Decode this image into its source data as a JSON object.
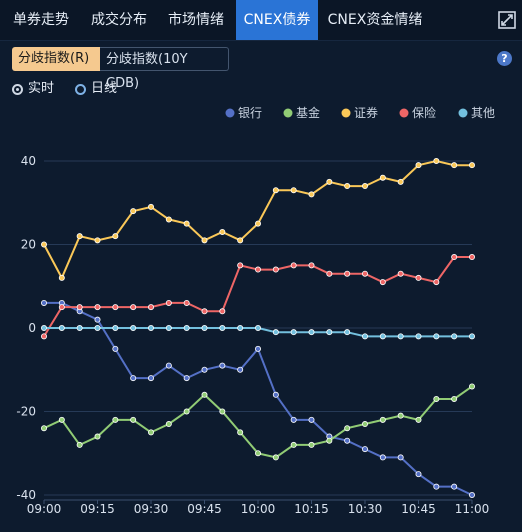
{
  "tabs": [
    {
      "label": "单券走势",
      "active": false
    },
    {
      "label": "成交分布",
      "active": false
    },
    {
      "label": "市场情绪",
      "active": false
    },
    {
      "label": "CNEX债券",
      "active": true
    },
    {
      "label": "CNEX资金情绪",
      "active": false
    }
  ],
  "subtabs": [
    {
      "label": "分歧指数(R)",
      "active": true
    },
    {
      "label": "分歧指数(10Y CDB)",
      "active": false
    }
  ],
  "modes": [
    {
      "label": "实时",
      "checked": true
    },
    {
      "label": "日线",
      "checked": false
    }
  ],
  "icons": {
    "expand": "expand-icon",
    "help": "help-icon"
  },
  "help_glyph": "?",
  "colors": {
    "active_tab": "#2a74d6",
    "active_subtab": "#f5c98f",
    "background": "#0d1b2e"
  },
  "chart_data": {
    "type": "line",
    "title": "",
    "xlabel": "",
    "ylabel": "",
    "ylim": [
      -40,
      45
    ],
    "yticks": [
      40,
      20,
      0,
      -20,
      -40
    ],
    "grid": true,
    "legend_position": "top-right",
    "x": [
      "09:00",
      "09:05",
      "09:10",
      "09:15",
      "09:20",
      "09:25",
      "09:30",
      "09:35",
      "09:40",
      "09:45",
      "09:50",
      "09:55",
      "10:00",
      "10:05",
      "10:10",
      "10:15",
      "10:20",
      "10:25",
      "10:30",
      "10:35",
      "10:40",
      "10:45",
      "10:50",
      "10:55",
      "11:00"
    ],
    "xtick_labels": [
      "09:00",
      "09:15",
      "09:30",
      "09:45",
      "10:00",
      "10:15",
      "10:30",
      "10:45",
      "11:00"
    ],
    "series": [
      {
        "name": "银行",
        "color": "#5470c6",
        "values": [
          6,
          6,
          4,
          2,
          -5,
          -12,
          -12,
          -9,
          -12,
          -10,
          -9,
          -10,
          -5,
          -16,
          -22,
          -22,
          -26,
          -27,
          -29,
          -31,
          -31,
          -35,
          -38,
          -38,
          -40
        ]
      },
      {
        "name": "基金",
        "color": "#91cc75",
        "values": [
          -24,
          -22,
          -28,
          -26,
          -22,
          -22,
          -25,
          -23,
          -20,
          -16,
          -20,
          -25,
          -30,
          -31,
          -28,
          -28,
          -27,
          -24,
          -23,
          -22,
          -21,
          -22,
          -17,
          -17,
          -14
        ]
      },
      {
        "name": "证券",
        "color": "#fac858",
        "values": [
          20,
          12,
          22,
          21,
          22,
          28,
          29,
          26,
          25,
          21,
          23,
          21,
          25,
          33,
          33,
          32,
          35,
          34,
          34,
          36,
          35,
          39,
          40,
          39,
          39
        ]
      },
      {
        "name": "保险",
        "color": "#ee6666",
        "values": [
          -2,
          5,
          5,
          5,
          5,
          5,
          5,
          6,
          6,
          4,
          4,
          15,
          14,
          14,
          15,
          15,
          13,
          13,
          13,
          11,
          13,
          12,
          11,
          17,
          17
        ]
      },
      {
        "name": "其他",
        "color": "#73c0de",
        "values": [
          0,
          0,
          0,
          0,
          0,
          0,
          0,
          0,
          0,
          0,
          0,
          0,
          0,
          -1,
          -1,
          -1,
          -1,
          -1,
          -2,
          -2,
          -2,
          -2,
          -2,
          -2,
          -2
        ]
      }
    ]
  }
}
